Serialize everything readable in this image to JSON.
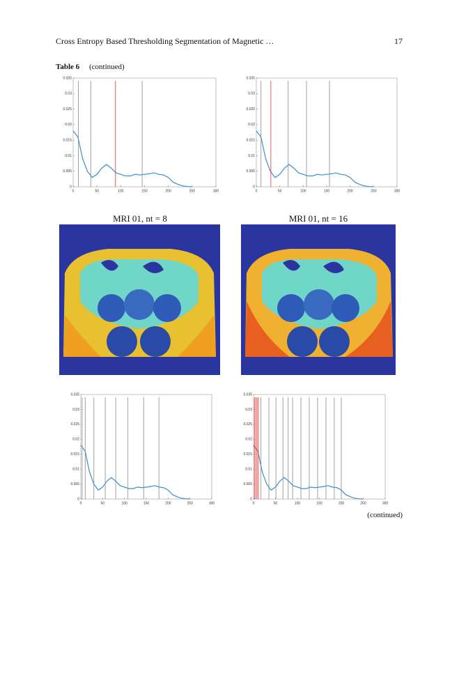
{
  "header": {
    "title": "Cross Entropy Based Thresholding Segmentation of Magnetic …",
    "page": "17"
  },
  "table_caption": {
    "label": "Table 6",
    "text": "(continued)"
  },
  "image_captions": [
    "MRI 01, nt = 8",
    "MRI 01, nt = 16"
  ],
  "footer": "(continued)",
  "chart_data": [
    {
      "type": "line",
      "xlim": [
        0,
        300
      ],
      "xticks": [
        0,
        50,
        100,
        150,
        200,
        250,
        300
      ],
      "ylim": [
        0,
        0.035
      ],
      "yticks": [
        0,
        0.005,
        0.01,
        0.015,
        0.02,
        0.025,
        0.03,
        0.035
      ],
      "color": "#3a8fc8",
      "x": [
        0,
        10,
        20,
        30,
        40,
        50,
        60,
        70,
        80,
        90,
        100,
        110,
        120,
        130,
        140,
        150,
        160,
        170,
        180,
        190,
        200,
        210,
        220,
        230,
        240,
        250
      ],
      "values": [
        0.018,
        0.016,
        0.009,
        0.005,
        0.003,
        0.004,
        0.006,
        0.0072,
        0.006,
        0.0045,
        0.004,
        0.0035,
        0.0035,
        0.004,
        0.0038,
        0.004,
        0.0042,
        0.0045,
        0.004,
        0.0038,
        0.003,
        0.0015,
        0.0008,
        0.0003,
        0.0001,
        0
      ],
      "thresholds": [
        11,
        37,
        89,
        145
      ],
      "threshold_colors": [
        "#888888",
        "#888888",
        "#e03030",
        "#888888"
      ]
    },
    {
      "type": "line",
      "xlim": [
        0,
        300
      ],
      "xticks": [
        0,
        50,
        100,
        150,
        200,
        250,
        300
      ],
      "ylim": [
        0,
        0.035
      ],
      "yticks": [
        0,
        0.005,
        0.01,
        0.015,
        0.02,
        0.025,
        0.03,
        0.035
      ],
      "color": "#3a8fc8",
      "x": [
        0,
        10,
        20,
        30,
        40,
        50,
        60,
        70,
        80,
        90,
        100,
        110,
        120,
        130,
        140,
        150,
        160,
        170,
        180,
        190,
        200,
        210,
        220,
        230,
        240,
        250
      ],
      "values": [
        0.018,
        0.016,
        0.009,
        0.005,
        0.003,
        0.004,
        0.006,
        0.0072,
        0.006,
        0.0045,
        0.004,
        0.0035,
        0.0035,
        0.004,
        0.0038,
        0.004,
        0.0042,
        0.0045,
        0.004,
        0.0038,
        0.003,
        0.0015,
        0.0008,
        0.0003,
        0.0001,
        0
      ],
      "thresholds": [
        10,
        31,
        68,
        107,
        156
      ],
      "threshold_colors": [
        "#888888",
        "#e03030",
        "#888888",
        "#888888",
        "#888888"
      ]
    },
    {
      "type": "line",
      "xlim": [
        0,
        300
      ],
      "xticks": [
        0,
        50,
        100,
        150,
        200,
        250,
        300
      ],
      "ylim": [
        0,
        0.035
      ],
      "yticks": [
        0,
        0.005,
        0.01,
        0.015,
        0.02,
        0.025,
        0.03,
        0.035
      ],
      "color": "#3a8fc8",
      "x": [
        0,
        10,
        20,
        30,
        40,
        50,
        60,
        70,
        80,
        90,
        100,
        110,
        120,
        130,
        140,
        150,
        160,
        170,
        180,
        190,
        200,
        210,
        220,
        230,
        240,
        250
      ],
      "values": [
        0.018,
        0.016,
        0.009,
        0.005,
        0.003,
        0.004,
        0.006,
        0.0072,
        0.006,
        0.0045,
        0.004,
        0.0035,
        0.0035,
        0.004,
        0.0038,
        0.004,
        0.0042,
        0.0045,
        0.004,
        0.0038,
        0.003,
        0.0015,
        0.0008,
        0.0003,
        0.0001,
        0
      ],
      "thresholds": [
        3,
        10,
        30,
        56,
        80,
        108,
        144,
        179
      ],
      "threshold_colors": [
        "#888888",
        "#888888",
        "#888888",
        "#888888",
        "#888888",
        "#888888",
        "#888888",
        "#888888"
      ]
    },
    {
      "type": "line",
      "xlim": [
        0,
        300
      ],
      "xticks": [
        0,
        50,
        100,
        150,
        200,
        250,
        300
      ],
      "ylim": [
        0,
        0.035
      ],
      "yticks": [
        0,
        0.005,
        0.01,
        0.015,
        0.02,
        0.025,
        0.03,
        0.035
      ],
      "color": "#3a8fc8",
      "x": [
        0,
        10,
        20,
        30,
        40,
        50,
        60,
        70,
        80,
        90,
        100,
        110,
        120,
        130,
        140,
        150,
        160,
        170,
        180,
        190,
        200,
        210,
        220,
        230,
        240,
        250
      ],
      "values": [
        0.018,
        0.016,
        0.009,
        0.005,
        0.003,
        0.004,
        0.006,
        0.0072,
        0.006,
        0.0045,
        0.004,
        0.0035,
        0.0035,
        0.004,
        0.0038,
        0.004,
        0.0042,
        0.0045,
        0.004,
        0.0038,
        0.003,
        0.0015,
        0.0008,
        0.0003,
        0.0001,
        0
      ],
      "thresholds": [
        2,
        5,
        8,
        11,
        17,
        35,
        51,
        67,
        79,
        89,
        108,
        127,
        146,
        165,
        184,
        200
      ],
      "threshold_colors": [
        "#e03030",
        "#e03030",
        "#e03030",
        "#e03030",
        "#888888",
        "#888888",
        "#888888",
        "#888888",
        "#888888",
        "#888888",
        "#888888",
        "#888888",
        "#888888",
        "#888888",
        "#888888",
        "#888888"
      ]
    }
  ]
}
